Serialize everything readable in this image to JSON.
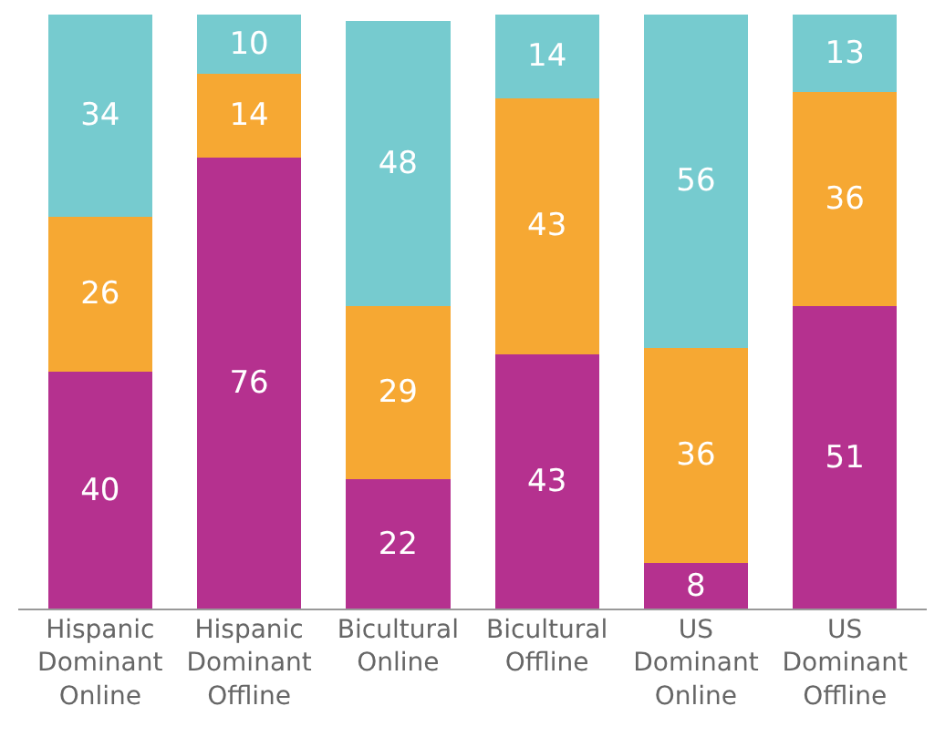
{
  "chart_data": {
    "type": "bar",
    "stacked": true,
    "data_labels": true,
    "tick_labels": "x",
    "categories": [
      "Hispanic Dominant Online",
      "Hispanic Dominant Offline",
      "Bicultural Online",
      "Bicultural Offline",
      "US Dominant Online",
      "US Dominant Offline"
    ],
    "series": [
      {
        "color": "#b5318f",
        "values": [
          40,
          76,
          22,
          43,
          8,
          51
        ]
      },
      {
        "color": "#f6a833",
        "values": [
          26,
          14,
          29,
          43,
          36,
          36
        ]
      },
      {
        "color": "#76cbcf",
        "values": [
          34,
          10,
          48,
          14,
          56,
          13
        ]
      }
    ]
  }
}
